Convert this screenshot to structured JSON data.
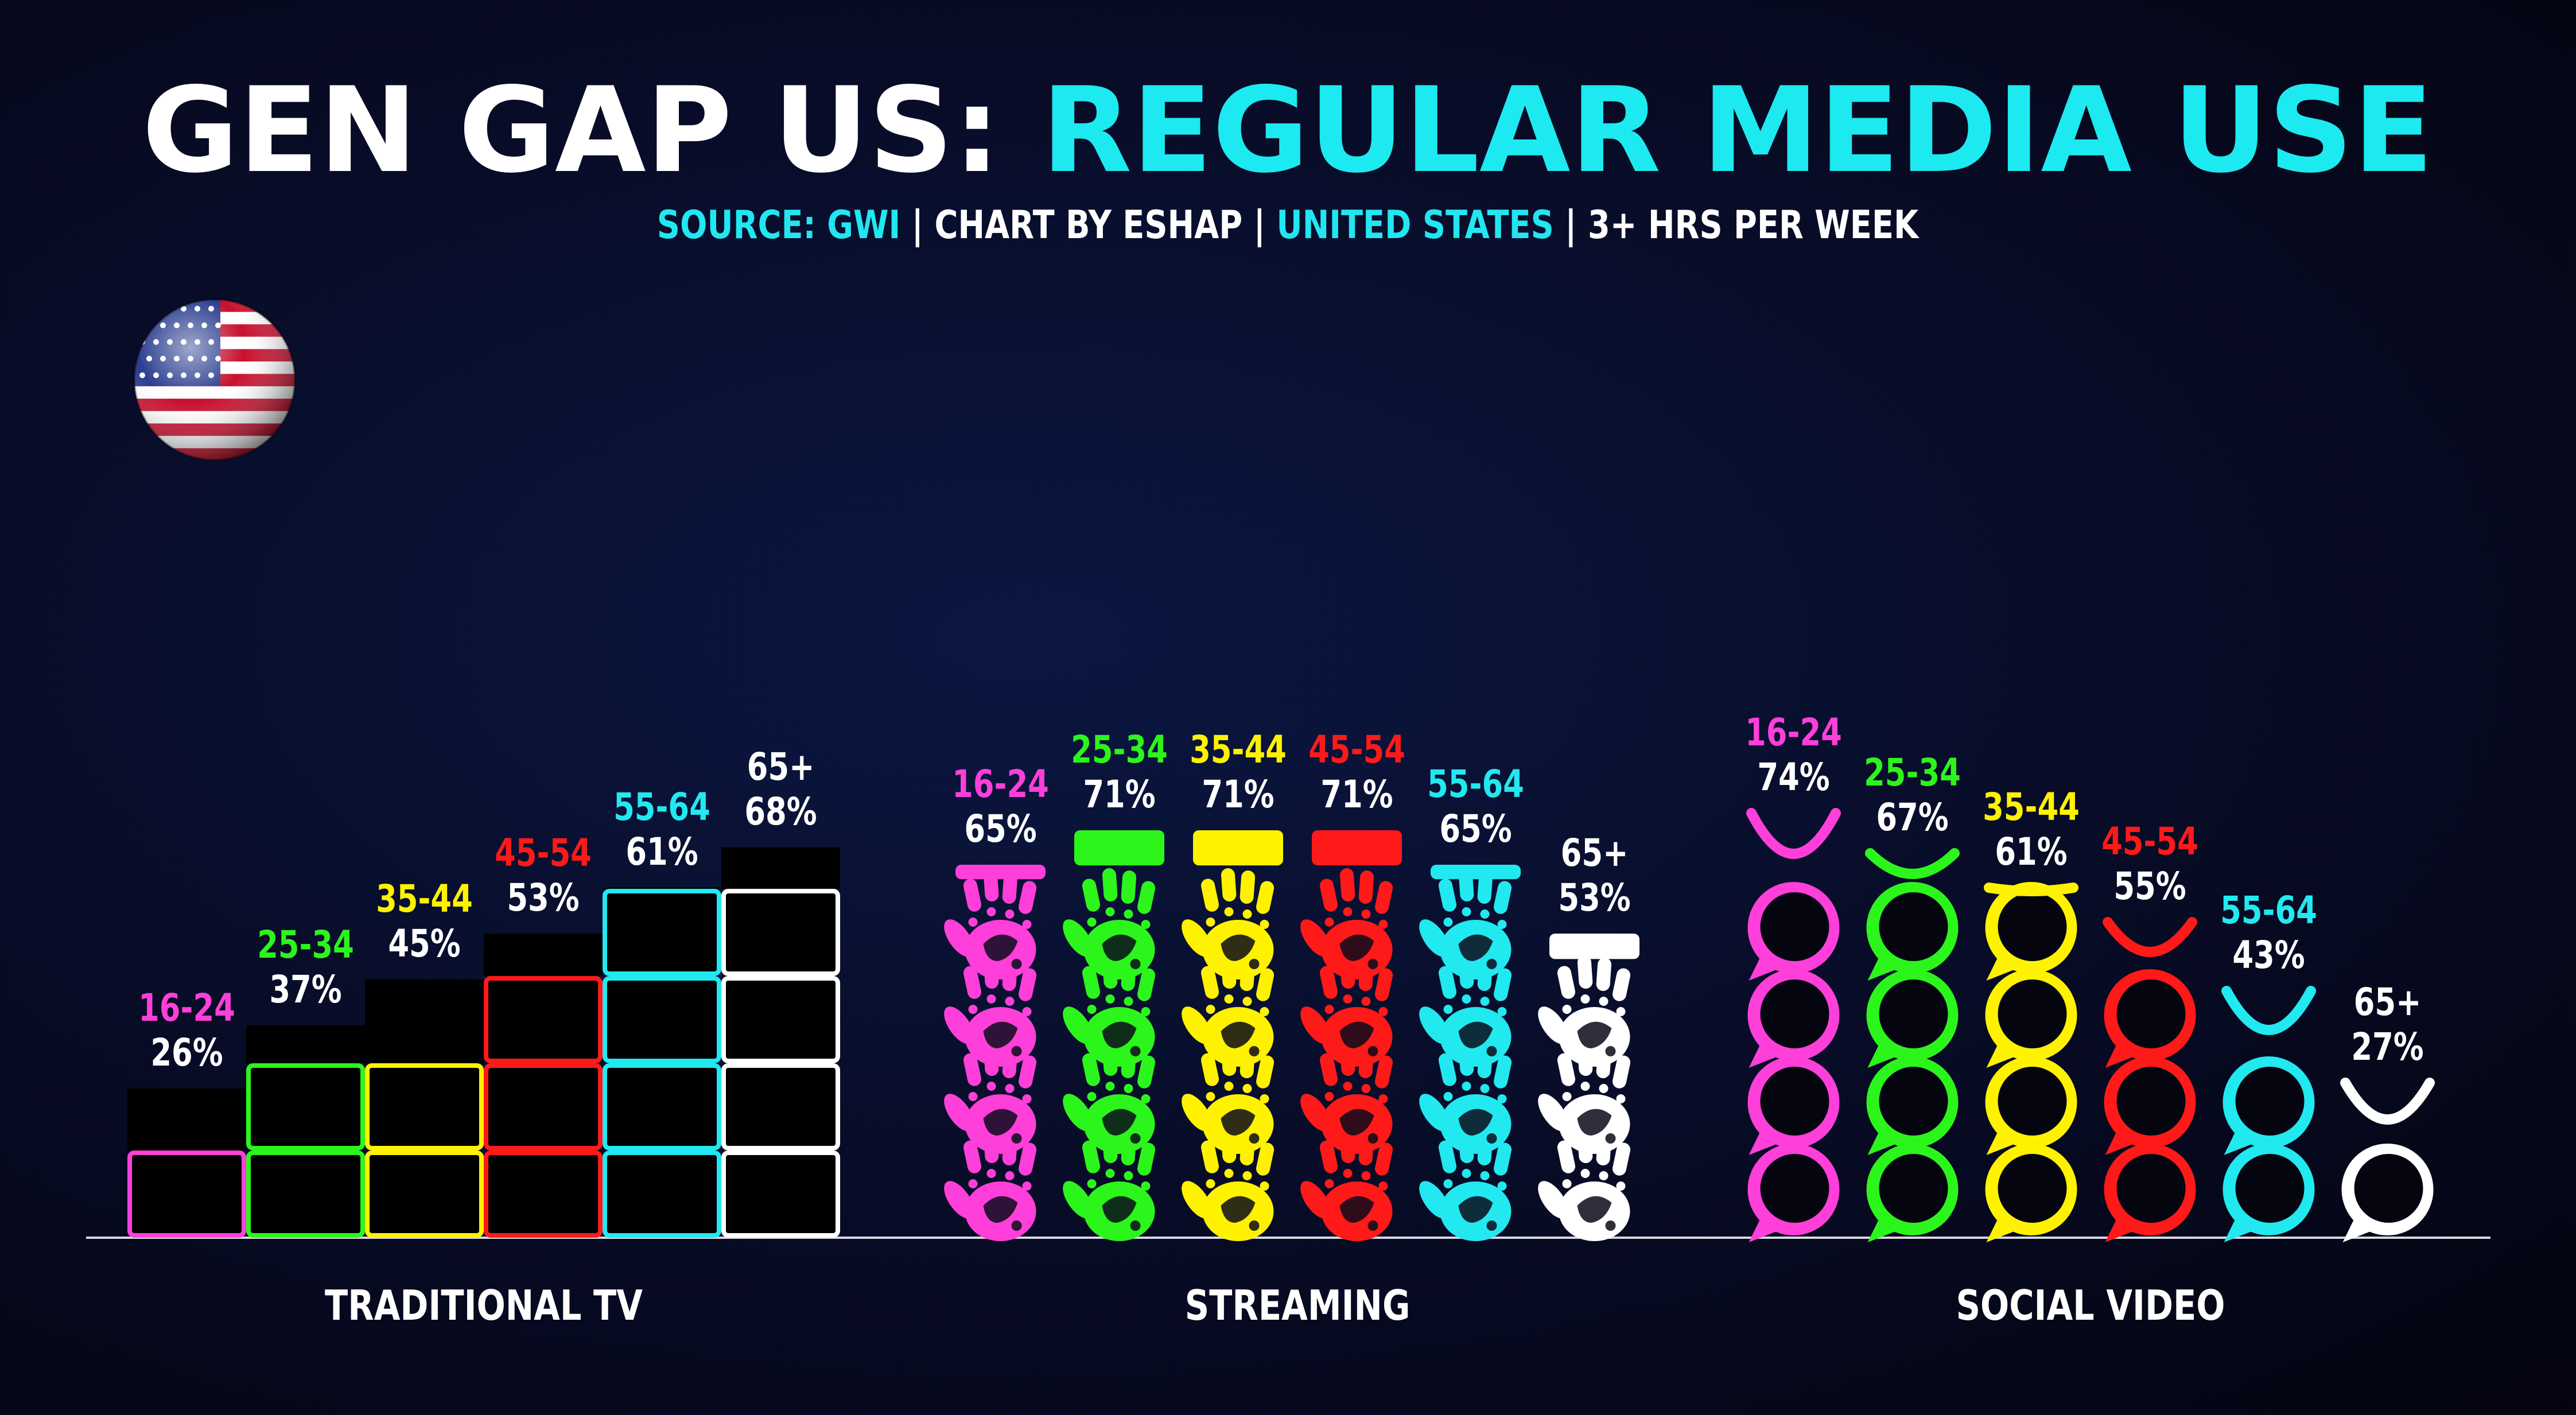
{
  "header": {
    "title_part1": "GEN GAP US: ",
    "title_part2": "REGULAR MEDIA USE",
    "subtitle": [
      {
        "text": "SOURCE: GWI",
        "color": "#22e6f0"
      },
      {
        "text": " | ",
        "color": "#ffffff"
      },
      {
        "text": "CHART BY ESHAP",
        "color": "#ffffff"
      },
      {
        "text": " | ",
        "color": "#ffffff"
      },
      {
        "text": "UNITED STATES",
        "color": "#22e6f0"
      },
      {
        "text": " | ",
        "color": "#ffffff"
      },
      {
        "text": "3+ HRS PER WEEK",
        "color": "#ffffff"
      }
    ]
  },
  "colors": {
    "title_white": "#ffffff",
    "title_accent": "#1de9f0",
    "baseline": "#d8d8e0"
  },
  "chart_data": {
    "type": "bar",
    "categories": [
      "TRADITIONAL TV",
      "STREAMING",
      "SOCIAL VIDEO"
    ],
    "icons": [
      "tv-screen-icon",
      "hand-print-icon",
      "speech-bubble-icon"
    ],
    "series": [
      {
        "name": "16-24",
        "color": "#ff3fd9",
        "values": [
          26,
          65,
          74
        ]
      },
      {
        "name": "25-34",
        "color": "#2cf51c",
        "values": [
          37,
          71,
          67
        ]
      },
      {
        "name": "35-44",
        "color": "#fff200",
        "values": [
          45,
          71,
          61
        ]
      },
      {
        "name": "45-54",
        "color": "#ff1a1a",
        "values": [
          53,
          71,
          55
        ]
      },
      {
        "name": "55-64",
        "color": "#22e8f0",
        "values": [
          61,
          65,
          43
        ]
      },
      {
        "name": "65+",
        "color": "#ffffff",
        "values": [
          68,
          53,
          27
        ]
      }
    ],
    "value_suffix": "%",
    "ylim": [
      0,
      100
    ],
    "legend": "labels above each column",
    "grid": false
  }
}
